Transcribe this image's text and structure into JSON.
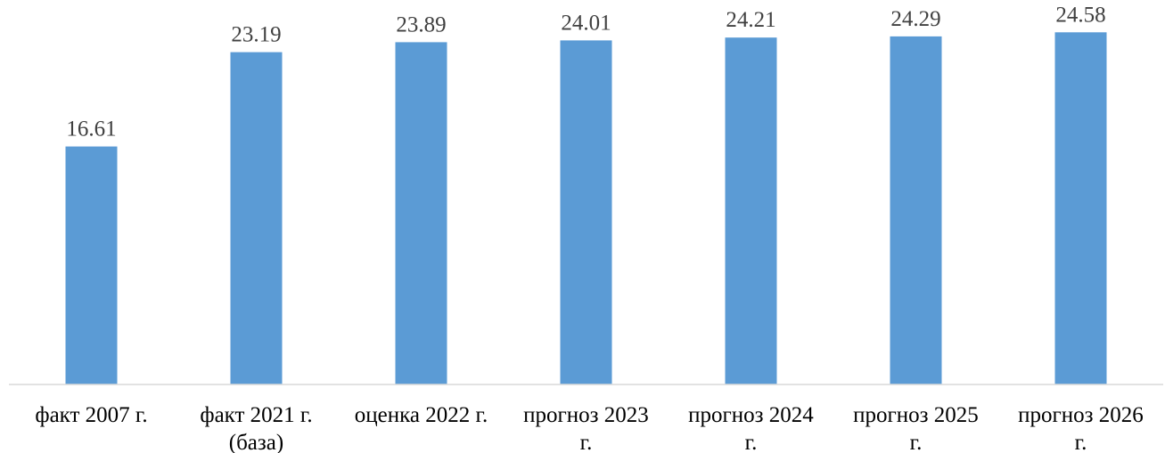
{
  "chart_data": {
    "type": "bar",
    "categories": [
      [
        "факт 2007 г."
      ],
      [
        "факт 2021 г.",
        "(база)"
      ],
      [
        "оценка 2022 г."
      ],
      [
        "прогноз 2023",
        "г."
      ],
      [
        "прогноз 2024",
        "г."
      ],
      [
        "прогноз 2025",
        "г."
      ],
      [
        "прогноз 2026",
        "г."
      ]
    ],
    "values": [
      16.61,
      23.19,
      23.89,
      24.01,
      24.21,
      24.29,
      24.58
    ],
    "value_labels": [
      "16.61",
      "23.19",
      "23.89",
      "24.01",
      "24.21",
      "24.29",
      "24.58"
    ],
    "title": "",
    "xlabel": "",
    "ylabel": "",
    "ylim": [
      0,
      25.9
    ],
    "grid": false,
    "legend": "none",
    "colors": {
      "bar": "#5B9BD5",
      "axis": "#D9D9D9",
      "label": "#404040"
    }
  }
}
